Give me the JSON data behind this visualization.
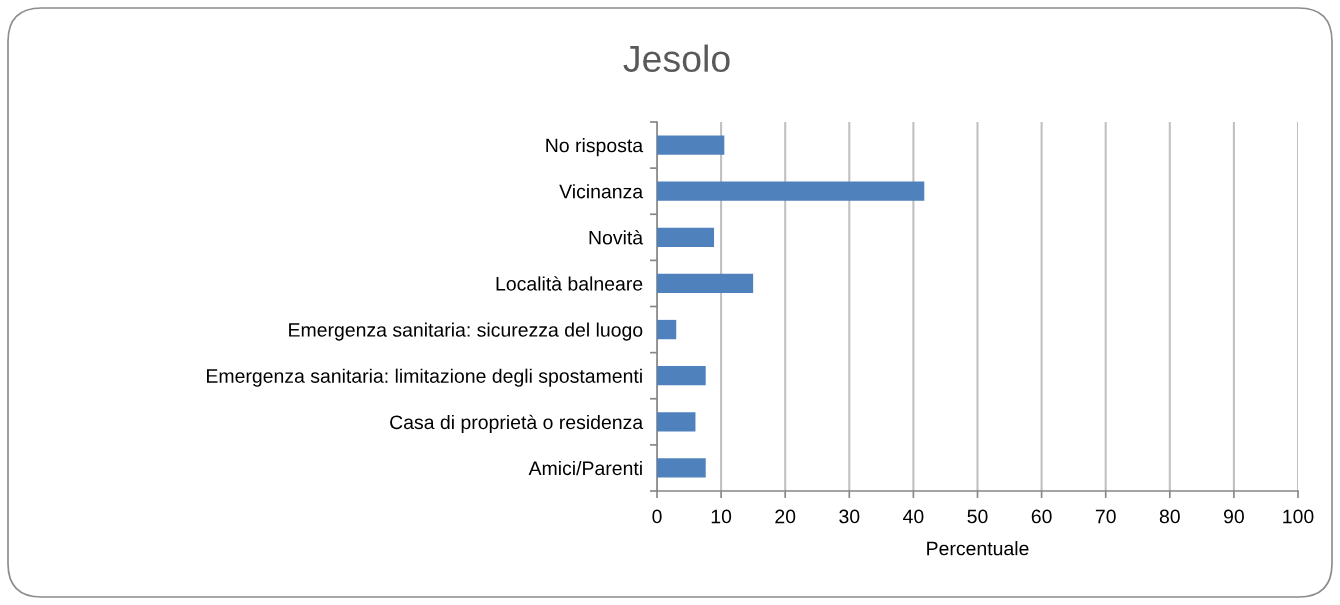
{
  "chart_data": {
    "type": "bar",
    "orientation": "horizontal",
    "title": "Jesolo",
    "xlabel": "Percentuale",
    "categories": [
      "No risposta",
      "Vicinanza",
      "Novità",
      "Località balneare",
      "Emergenza sanitaria: sicurezza del luogo",
      "Emergenza sanitaria: limitazione degli spostamenti",
      "Casa di proprietà o residenza",
      "Amici/Parenti"
    ],
    "values": [
      10.5,
      41.7,
      8.9,
      15.0,
      3.0,
      7.6,
      6.0,
      7.6
    ],
    "color": "#4f81bd",
    "xlim": [
      0,
      100
    ],
    "xticks": [
      0,
      10,
      20,
      30,
      40,
      50,
      60,
      70,
      80,
      90,
      100
    ],
    "grid": "x",
    "legend": false
  }
}
